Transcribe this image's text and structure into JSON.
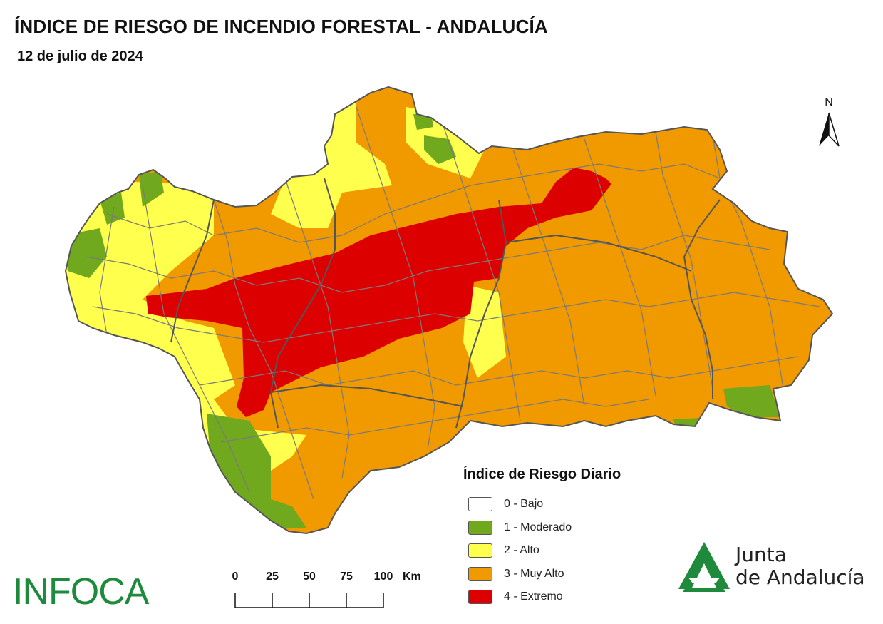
{
  "header": {
    "title": "ÍNDICE DE RIESGO DE INCENDIO FORESTAL - ANDALUCÍA",
    "date": "12 de julio de 2024"
  },
  "north_arrow": {
    "label": "N"
  },
  "legend": {
    "title": "Índice de Riesgo Diario",
    "items": [
      {
        "label": "0 - Bajo",
        "color": "#ffffff"
      },
      {
        "label": "1 - Moderado",
        "color": "#70a81e"
      },
      {
        "label": "2 - Alto",
        "color": "#ffff4d"
      },
      {
        "label": "3 - Muy Alto",
        "color": "#f09a00"
      },
      {
        "label": "4 - Extremo",
        "color": "#dd0000"
      }
    ]
  },
  "scale_bar": {
    "labels": [
      "0",
      "25",
      "50",
      "75",
      "100"
    ],
    "unit": "Km"
  },
  "logos": {
    "infoca": "INFOCA",
    "junta_line1": "Junta",
    "junta_line2": "de Andalucía"
  },
  "map": {
    "region": "Andalucía",
    "colors": {
      "moderado": "#70a81e",
      "alto": "#ffff4d",
      "muy_alto": "#f09a00",
      "extremo": "#dd0000",
      "border": "#6e6e6e"
    }
  }
}
